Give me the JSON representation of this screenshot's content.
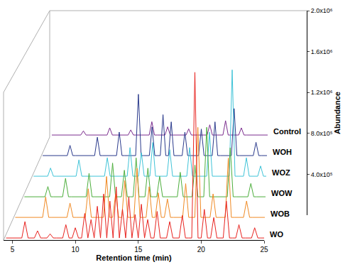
{
  "chart_data": {
    "type": "line",
    "x_label": "Retention time (min)",
    "y_label": "Abundance",
    "xlim": [
      4.3,
      25
    ],
    "xticks": [
      5,
      10,
      15,
      20,
      25
    ],
    "ylim": [
      0,
      2000000
    ],
    "yticks": [
      {
        "value": 400000,
        "label": "4.0x10⁵"
      },
      {
        "value": 800000,
        "label": "8.0x10⁵"
      },
      {
        "value": 1200000,
        "label": "1.2x10⁶"
      },
      {
        "value": 1600000,
        "label": "1.6x10⁶"
      },
      {
        "value": 2000000,
        "label": "2.0x10⁶"
      }
    ],
    "x": [
      4.5,
      4.75,
      5,
      5.25,
      5.5,
      5.75,
      6,
      6.25,
      6.5,
      6.75,
      7,
      7.25,
      7.5,
      7.75,
      8,
      8.25,
      8.5,
      8.75,
      9,
      9.25,
      9.5,
      9.75,
      10,
      10.25,
      10.5,
      10.75,
      11,
      11.25,
      11.5,
      11.75,
      12,
      12.25,
      12.5,
      12.75,
      13,
      13.25,
      13.5,
      13.75,
      14,
      14.25,
      14.5,
      14.75,
      15,
      15.25,
      15.5,
      15.75,
      16,
      16.25,
      16.5,
      16.75,
      17,
      17.25,
      17.5,
      17.75,
      18,
      18.25,
      18.5,
      18.75,
      19,
      19.25,
      19.5,
      19.75,
      20,
      20.25,
      20.5,
      20.75,
      21,
      21.25,
      21.5,
      21.75,
      22,
      22.25,
      22.5,
      22.75,
      23,
      23.25,
      23.5,
      23.75,
      24,
      24.25,
      24.5,
      24.75,
      25
    ],
    "series": [
      {
        "name": "Control",
        "color": "#7b2d8e",
        "values": [
          20000,
          20000,
          20000,
          20000,
          20000,
          20000,
          20000,
          20000,
          20000,
          20000,
          20000,
          20000,
          60000,
          20000,
          20000,
          20000,
          20000,
          20000,
          20000,
          20000,
          20000,
          20000,
          90000,
          20000,
          20000,
          20000,
          20000,
          20000,
          20000,
          20000,
          70000,
          20000,
          20000,
          20000,
          20000,
          20000,
          20000,
          20000,
          150000,
          20000,
          20000,
          20000,
          20000,
          20000,
          100000,
          20000,
          20000,
          20000,
          20000,
          20000,
          20000,
          20000,
          80000,
          20000,
          20000,
          20000,
          20000,
          20000,
          20000,
          20000,
          120000,
          20000,
          20000,
          20000,
          20000,
          20000,
          160000,
          20000,
          20000,
          20000,
          20000,
          20000,
          90000,
          20000,
          20000,
          20000,
          20000,
          20000,
          20000,
          20000,
          20000,
          20000,
          20000
        ]
      },
      {
        "name": "WOH",
        "color": "#2a3a8c",
        "values": [
          20000,
          20000,
          20000,
          20000,
          20000,
          20000,
          20000,
          20000,
          20000,
          20000,
          120000,
          20000,
          20000,
          20000,
          20000,
          20000,
          20000,
          20000,
          20000,
          20000,
          200000,
          20000,
          20000,
          20000,
          20000,
          20000,
          20000,
          20000,
          250000,
          20000,
          20000,
          20000,
          20000,
          20000,
          20000,
          620000,
          20000,
          20000,
          20000,
          20000,
          300000,
          20000,
          20000,
          20000,
          420000,
          20000,
          20000,
          350000,
          20000,
          20000,
          20000,
          20000,
          250000,
          20000,
          20000,
          20000,
          20000,
          20000,
          280000,
          20000,
          20000,
          20000,
          20000,
          350000,
          20000,
          20000,
          20000,
          20000,
          20000,
          20000,
          480000,
          20000,
          20000,
          20000,
          20000,
          20000,
          20000,
          20000,
          150000,
          20000,
          20000,
          20000,
          20000
        ]
      },
      {
        "name": "WOZ",
        "color": "#41c4d8",
        "values": [
          20000,
          20000,
          20000,
          20000,
          20000,
          20000,
          100000,
          20000,
          20000,
          20000,
          20000,
          20000,
          20000,
          20000,
          20000,
          20000,
          180000,
          20000,
          20000,
          20000,
          20000,
          20000,
          20000,
          20000,
          20000,
          20000,
          200000,
          20000,
          20000,
          20000,
          20000,
          20000,
          20000,
          20000,
          300000,
          20000,
          20000,
          20000,
          250000,
          20000,
          20000,
          20000,
          350000,
          20000,
          20000,
          20000,
          20000,
          20000,
          280000,
          20000,
          20000,
          20000,
          20000,
          20000,
          20000,
          300000,
          20000,
          20000,
          20000,
          20000,
          20000,
          20000,
          450000,
          20000,
          20000,
          20000,
          20000,
          20000,
          20000,
          20000,
          1060000,
          20000,
          20000,
          20000,
          20000,
          200000,
          20000,
          20000,
          20000,
          20000,
          120000,
          20000,
          20000
        ]
      },
      {
        "name": "WOW",
        "color": "#4cae3c",
        "values": [
          20000,
          20000,
          20000,
          20000,
          20000,
          20000,
          20000,
          20000,
          120000,
          20000,
          20000,
          20000,
          20000,
          20000,
          200000,
          20000,
          20000,
          20000,
          20000,
          20000,
          20000,
          20000,
          250000,
          20000,
          20000,
          20000,
          20000,
          20000,
          20000,
          20000,
          350000,
          20000,
          20000,
          20000,
          280000,
          20000,
          20000,
          20000,
          400000,
          20000,
          20000,
          20000,
          300000,
          20000,
          20000,
          20000,
          220000,
          20000,
          20000,
          20000,
          20000,
          20000,
          20000,
          260000,
          20000,
          20000,
          20000,
          20000,
          330000,
          20000,
          20000,
          20000,
          700000,
          20000,
          20000,
          20000,
          20000,
          20000,
          20000,
          20000,
          500000,
          20000,
          20000,
          20000,
          20000,
          20000,
          20000,
          150000,
          20000,
          20000,
          20000,
          20000,
          20000
        ]
      },
      {
        "name": "WOB",
        "color": "#f08a24",
        "values": [
          20000,
          20000,
          20000,
          20000,
          20000,
          20000,
          20000,
          20000,
          20000,
          20000,
          220000,
          20000,
          20000,
          20000,
          20000,
          20000,
          20000,
          20000,
          160000,
          20000,
          20000,
          20000,
          20000,
          20000,
          300000,
          20000,
          20000,
          20000,
          20000,
          20000,
          420000,
          20000,
          20000,
          250000,
          20000,
          20000,
          380000,
          20000,
          20000,
          20000,
          500000,
          20000,
          20000,
          20000,
          320000,
          20000,
          20000,
          260000,
          20000,
          20000,
          200000,
          20000,
          20000,
          20000,
          20000,
          20000,
          350000,
          20000,
          20000,
          20000,
          900000,
          20000,
          20000,
          20000,
          20000,
          250000,
          20000,
          20000,
          20000,
          20000,
          600000,
          20000,
          20000,
          20000,
          20000,
          20000,
          180000,
          20000,
          20000,
          20000,
          20000,
          20000,
          20000
        ]
      },
      {
        "name": "WO",
        "color": "#e8231f",
        "values": [
          20000,
          20000,
          20000,
          20000,
          20000,
          20000,
          180000,
          20000,
          20000,
          20000,
          90000,
          20000,
          20000,
          20000,
          60000,
          20000,
          20000,
          20000,
          20000,
          150000,
          20000,
          20000,
          120000,
          20000,
          20000,
          260000,
          20000,
          200000,
          20000,
          330000,
          20000,
          450000,
          20000,
          380000,
          20000,
          520000,
          20000,
          300000,
          20000,
          420000,
          20000,
          250000,
          20000,
          350000,
          20000,
          200000,
          20000,
          20000,
          280000,
          20000,
          20000,
          20000,
          180000,
          20000,
          20000,
          20000,
          240000,
          20000,
          20000,
          20000,
          1640000,
          20000,
          20000,
          300000,
          20000,
          20000,
          220000,
          20000,
          20000,
          20000,
          380000,
          20000,
          20000,
          20000,
          150000,
          20000,
          20000,
          20000,
          20000,
          120000,
          20000,
          20000,
          20000
        ]
      }
    ]
  }
}
